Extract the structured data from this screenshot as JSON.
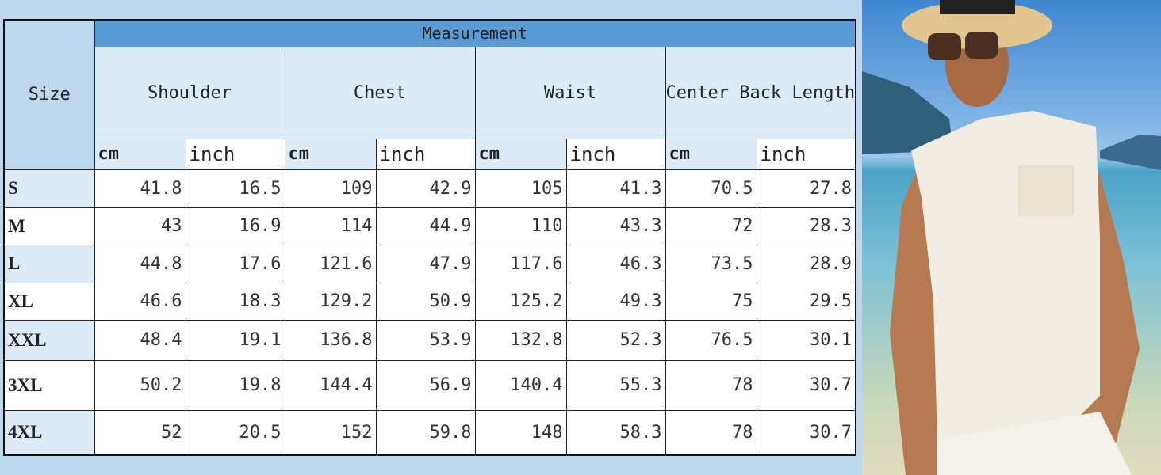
{
  "table": {
    "size_header": "Size",
    "measurement_header": "Measurement",
    "groups": [
      "Shoulder",
      "Chest",
      "Waist",
      "Center Back Length"
    ],
    "units": [
      "cm",
      "inch"
    ],
    "rows": [
      {
        "size": "S",
        "values": [
          "41.8",
          "16.5",
          "109",
          "42.9",
          "105",
          "41.3",
          "70.5",
          "27.8"
        ]
      },
      {
        "size": "M",
        "values": [
          "43",
          "16.9",
          "114",
          "44.9",
          "110",
          "43.3",
          "72",
          "28.3"
        ]
      },
      {
        "size": "L",
        "values": [
          "44.8",
          "17.6",
          "121.6",
          "47.9",
          "117.6",
          "46.3",
          "73.5",
          "28.9"
        ]
      },
      {
        "size": "XL",
        "values": [
          "46.6",
          "18.3",
          "129.2",
          "50.9",
          "125.2",
          "49.3",
          "75",
          "29.5"
        ]
      },
      {
        "size": "XXL",
        "values": [
          "48.4",
          "19.1",
          "136.8",
          "53.9",
          "132.8",
          "52.3",
          "76.5",
          "30.1"
        ]
      },
      {
        "size": "3XL",
        "values": [
          "50.2",
          "19.8",
          "144.4",
          "56.9",
          "140.4",
          "55.3",
          "78",
          "30.7"
        ]
      },
      {
        "size": "4XL",
        "values": [
          "52",
          "20.5",
          "152",
          "59.8",
          "148",
          "58.3",
          "78",
          "30.7"
        ]
      }
    ]
  },
  "colors": {
    "header_accent": "#5b9bd5",
    "light_cell": "#ddebf7",
    "size_column": "#bdd7ee"
  },
  "photo": {
    "subject": "model-in-white-sleeveless-lace-up-shirt-on-beach"
  }
}
